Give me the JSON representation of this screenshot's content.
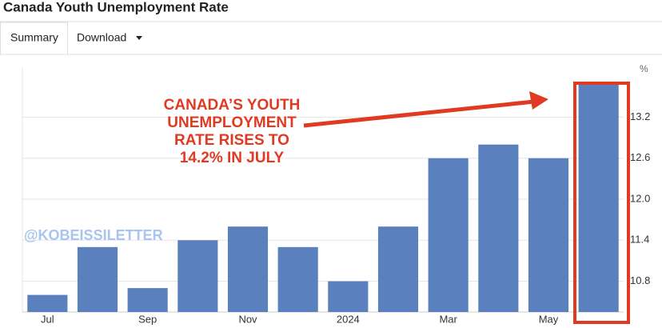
{
  "chart_data": {
    "type": "bar",
    "title": "Canada Youth Unemployment Rate",
    "tabs": [
      "Summary",
      "Download"
    ],
    "unit_label": "%",
    "categories": [
      "Jul",
      null,
      "Sep",
      null,
      "Nov",
      null,
      "2024",
      null,
      "Mar",
      null,
      "May",
      null
    ],
    "values": [
      10.6,
      11.3,
      10.7,
      11.4,
      11.6,
      11.3,
      10.8,
      11.6,
      12.6,
      12.8,
      12.6,
      13.7
    ],
    "color": "#5a81bd",
    "ylim": [
      10.35,
      13.92
    ],
    "yticks": [
      10.8,
      11.4,
      {
        "value": 12,
        "label": "12.0"
      },
      12.6,
      13.2
    ],
    "grid": true,
    "annotation": [
      "CANADA’S YOUTH",
      "UNEMPLOYMENT",
      "RATE RISES TO",
      "14.2% IN JULY"
    ],
    "watermark": "@KOBEISSILETTER"
  }
}
